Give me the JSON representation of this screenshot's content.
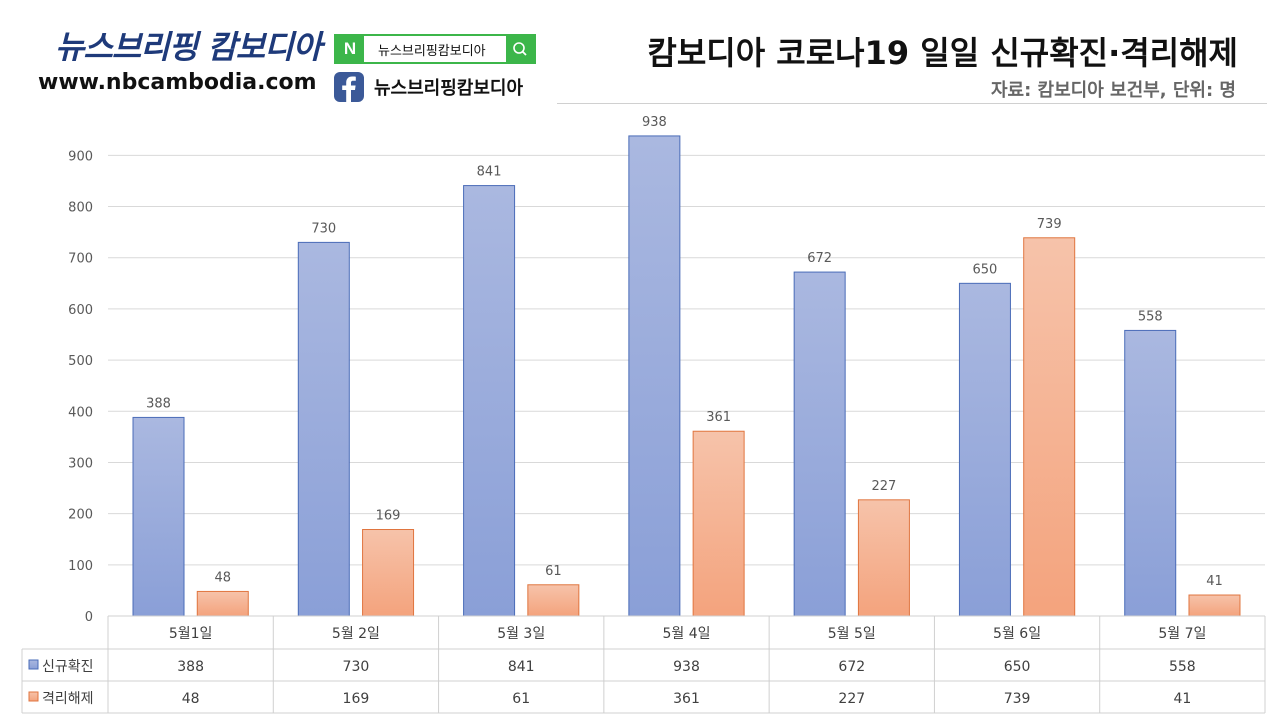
{
  "header": {
    "brand_name": "뉴스브리핑 캄보디아",
    "brand_url": "www.nbcambodia.com",
    "naver_logo": "N",
    "naver_search_text": "뉴스브리핑캄보디아",
    "facebook_name": "뉴스브리핑캄보디아",
    "colors": {
      "naver_green": "#3cb64a",
      "facebook_blue": "#3b5998",
      "brand_navy": "#1e3a7a"
    },
    "icons": {
      "naver": "naver-logo-icon",
      "search": "search-icon",
      "facebook": "facebook-icon"
    }
  },
  "chart_data": {
    "type": "bar",
    "title": "캄보디아 코로나19 일일 신규확진·격리해제",
    "subtitle": "자료: 캄보디아 보건부, 단위: 명",
    "categories": [
      "5월1일",
      "5월 2일",
      "5월 3일",
      "5월 4일",
      "5월 5일",
      "5월 6일",
      "5월 7일"
    ],
    "series": [
      {
        "name": "신규확진",
        "values": [
          388,
          730,
          841,
          938,
          672,
          650,
          558
        ],
        "color": "#8fa3d8"
      },
      {
        "name": "격리해제",
        "values": [
          48,
          169,
          61,
          361,
          227,
          739,
          41
        ],
        "color": "#f4a582"
      }
    ],
    "ylim": [
      0,
      900
    ],
    "yticks": [
      0,
      100,
      200,
      300,
      400,
      500,
      600,
      700,
      800,
      900
    ],
    "grid": true,
    "legend": "data-table-below"
  }
}
